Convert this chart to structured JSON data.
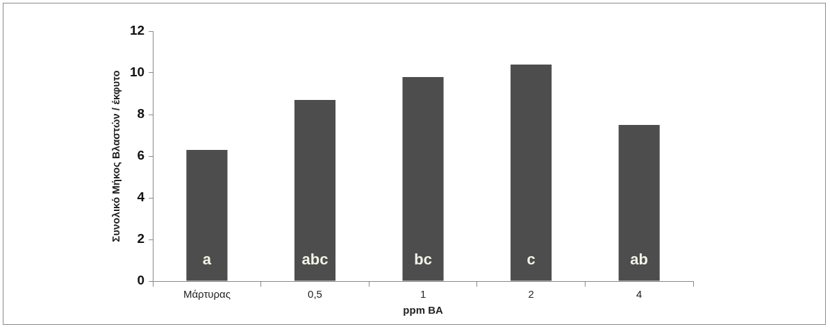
{
  "chart_data": {
    "type": "bar",
    "xlabel": "ppm BA",
    "ylabel": "Συνολικό Μήκος Βλαστών / έκφυτο",
    "categories": [
      "Μάρτυρας",
      "0,5",
      "1",
      "2",
      "4"
    ],
    "values": [
      6.3,
      8.7,
      9.8,
      10.4,
      7.5
    ],
    "color": "#4d4d4d",
    "ylim": [
      0,
      12
    ],
    "yticks": [
      0,
      2,
      4,
      6,
      8,
      10,
      12
    ],
    "grid": false,
    "legend": false,
    "annotations": [
      "a",
      "abc",
      "bc",
      "c",
      "ab"
    ]
  }
}
